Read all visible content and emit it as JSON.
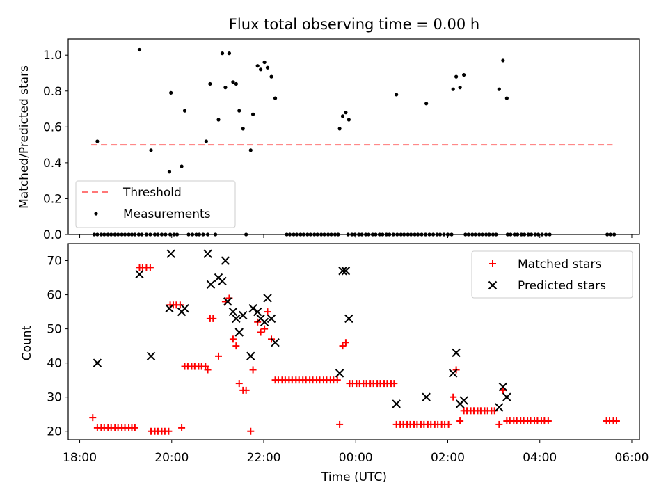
{
  "figure": {
    "title": "Flux total observing time = 0.00 h"
  },
  "chart_data": [
    {
      "type": "scatter",
      "title": "Flux total observing time = 0.00 h",
      "xlabel": "",
      "ylabel": "Matched/Predicted stars",
      "xlim": [
        "17:45",
        "06:10"
      ],
      "ylim": [
        0,
        1.09
      ],
      "yticks": [
        "0.0",
        "0.2",
        "0.4",
        "0.6",
        "0.8",
        "1.0"
      ],
      "grid": false,
      "legend_position": "lower-left",
      "legend": [
        "Threshold",
        "Measurements"
      ],
      "threshold": {
        "name": "Threshold",
        "value": 0.5,
        "x_start": "18:15",
        "x_end": "05:35",
        "color": "#ff7777",
        "style": "dashed"
      },
      "measurements": {
        "name": "Measurements",
        "color": "#000000",
        "points": [
          [
            "18:23",
            0.52
          ],
          [
            "19:18",
            1.03
          ],
          [
            "19:33",
            0.47
          ],
          [
            "19:57",
            0.35
          ],
          [
            "19:59",
            0.79
          ],
          [
            "20:13",
            0.38
          ],
          [
            "20:17",
            0.69
          ],
          [
            "20:45",
            0.52
          ],
          [
            "20:50",
            0.84
          ],
          [
            "21:01",
            0.64
          ],
          [
            "21:06",
            1.01
          ],
          [
            "21:10",
            0.82
          ],
          [
            "21:15",
            1.01
          ],
          [
            "21:20",
            0.85
          ],
          [
            "21:24",
            0.84
          ],
          [
            "21:28",
            0.69
          ],
          [
            "21:33",
            0.59
          ],
          [
            "21:43",
            0.47
          ],
          [
            "21:46",
            0.67
          ],
          [
            "21:52",
            0.94
          ],
          [
            "21:56",
            0.92
          ],
          [
            "22:01",
            0.96
          ],
          [
            "22:05",
            0.93
          ],
          [
            "22:10",
            0.88
          ],
          [
            "22:15",
            0.76
          ],
          [
            "23:39",
            0.59
          ],
          [
            "23:43",
            0.66
          ],
          [
            "23:47",
            0.68
          ],
          [
            "23:51",
            0.64
          ],
          [
            "00:53",
            0.78
          ],
          [
            "01:32",
            0.73
          ],
          [
            "02:07",
            0.81
          ],
          [
            "02:11",
            0.88
          ],
          [
            "02:16",
            0.82
          ],
          [
            "02:21",
            0.89
          ],
          [
            "03:07",
            0.81
          ],
          [
            "03:12",
            0.97
          ],
          [
            "03:17",
            0.76
          ]
        ],
        "zero_points": [
          "18:19",
          "18:23",
          "18:28",
          "18:32",
          "18:37",
          "18:41",
          "18:46",
          "18:50",
          "18:55",
          "18:59",
          "19:04",
          "19:08",
          "19:12",
          "19:17",
          "19:21",
          "19:27",
          "19:32",
          "19:38",
          "19:42",
          "19:47",
          "19:52",
          "19:58",
          "20:03",
          "20:07",
          "20:22",
          "20:27",
          "20:32",
          "20:36",
          "20:41",
          "20:47",
          "20:57",
          "21:37",
          "22:30",
          "22:34",
          "22:39",
          "22:43",
          "22:48",
          "22:52",
          "22:57",
          "23:01",
          "23:06",
          "23:10",
          "23:15",
          "23:19",
          "23:24",
          "23:28",
          "23:33",
          "23:37",
          "23:50",
          "23:55",
          "23:59",
          "00:04",
          "00:08",
          "00:13",
          "00:17",
          "00:22",
          "00:26",
          "00:31",
          "00:35",
          "00:40",
          "00:44",
          "00:49",
          "00:54",
          "00:59",
          "01:03",
          "01:08",
          "01:12",
          "01:17",
          "01:21",
          "01:26",
          "01:31",
          "01:36",
          "01:41",
          "01:46",
          "01:50",
          "01:55",
          "02:00",
          "02:05",
          "02:23",
          "02:27",
          "02:32",
          "02:36",
          "02:41",
          "02:45",
          "02:50",
          "02:54",
          "02:59",
          "03:03",
          "03:18",
          "03:22",
          "03:27",
          "03:31",
          "03:36",
          "03:40",
          "03:45",
          "03:49",
          "03:54",
          "03:58",
          "04:03",
          "04:08",
          "04:13",
          "05:28",
          "05:32",
          "05:37"
        ]
      }
    },
    {
      "type": "scatter",
      "xlabel": "Time (UTC)",
      "ylabel": "Count",
      "xlim": [
        "17:45",
        "06:10"
      ],
      "ylim": [
        17.5,
        75
      ],
      "xticks": [
        "18:00",
        "20:00",
        "22:00",
        "00:00",
        "02:00",
        "04:00",
        "06:00"
      ],
      "yticks": [
        "20",
        "30",
        "40",
        "50",
        "60",
        "70"
      ],
      "grid": false,
      "legend_position": "upper-right",
      "legend": [
        "Matched stars",
        "Predicted stars"
      ],
      "series": [
        {
          "name": "Matched stars",
          "marker": "plus",
          "color": "#ff0000",
          "points": [
            [
              "18:17",
              24
            ],
            [
              "18:23",
              21
            ],
            [
              "18:28",
              21
            ],
            [
              "18:32",
              21
            ],
            [
              "18:37",
              21
            ],
            [
              "18:41",
              21
            ],
            [
              "18:46",
              21
            ],
            [
              "18:50",
              21
            ],
            [
              "18:55",
              21
            ],
            [
              "18:59",
              21
            ],
            [
              "19:04",
              21
            ],
            [
              "19:08",
              21
            ],
            [
              "19:12",
              21
            ],
            [
              "19:18",
              68
            ],
            [
              "19:22",
              68
            ],
            [
              "19:27",
              68
            ],
            [
              "19:32",
              68
            ],
            [
              "19:33",
              20
            ],
            [
              "19:38",
              20
            ],
            [
              "19:42",
              20
            ],
            [
              "19:47",
              20
            ],
            [
              "19:51",
              20
            ],
            [
              "19:56",
              20
            ],
            [
              "19:58",
              57
            ],
            [
              "20:02",
              57
            ],
            [
              "20:06",
              57
            ],
            [
              "20:11",
              57
            ],
            [
              "20:13",
              21
            ],
            [
              "20:17",
              39
            ],
            [
              "20:21",
              39
            ],
            [
              "20:26",
              39
            ],
            [
              "20:30",
              39
            ],
            [
              "20:35",
              39
            ],
            [
              "20:39",
              39
            ],
            [
              "20:44",
              39
            ],
            [
              "20:47",
              38
            ],
            [
              "20:50",
              53
            ],
            [
              "20:54",
              53
            ],
            [
              "21:01",
              42
            ],
            [
              "21:10",
              58
            ],
            [
              "21:15",
              59
            ],
            [
              "21:20",
              47
            ],
            [
              "21:24",
              45
            ],
            [
              "21:28",
              34
            ],
            [
              "21:33",
              32
            ],
            [
              "21:37",
              32
            ],
            [
              "21:43",
              20
            ],
            [
              "21:46",
              38
            ],
            [
              "21:52",
              52
            ],
            [
              "21:56",
              49
            ],
            [
              "22:01",
              50
            ],
            [
              "22:05",
              55
            ],
            [
              "22:10",
              47
            ],
            [
              "22:15",
              35
            ],
            [
              "22:19",
              35
            ],
            [
              "22:24",
              35
            ],
            [
              "22:28",
              35
            ],
            [
              "22:33",
              35
            ],
            [
              "22:37",
              35
            ],
            [
              "22:42",
              35
            ],
            [
              "22:46",
              35
            ],
            [
              "22:51",
              35
            ],
            [
              "22:55",
              35
            ],
            [
              "23:00",
              35
            ],
            [
              "23:04",
              35
            ],
            [
              "23:09",
              35
            ],
            [
              "23:13",
              35
            ],
            [
              "23:18",
              35
            ],
            [
              "23:22",
              35
            ],
            [
              "23:27",
              35
            ],
            [
              "23:31",
              35
            ],
            [
              "23:36",
              35
            ],
            [
              "23:39",
              22
            ],
            [
              "23:43",
              45
            ],
            [
              "23:47",
              46
            ],
            [
              "23:52",
              34
            ],
            [
              "23:56",
              34
            ],
            [
              "00:01",
              34
            ],
            [
              "00:05",
              34
            ],
            [
              "00:10",
              34
            ],
            [
              "00:14",
              34
            ],
            [
              "00:19",
              34
            ],
            [
              "00:23",
              34
            ],
            [
              "00:28",
              34
            ],
            [
              "00:32",
              34
            ],
            [
              "00:37",
              34
            ],
            [
              "00:41",
              34
            ],
            [
              "00:46",
              34
            ],
            [
              "00:50",
              34
            ],
            [
              "00:53",
              22
            ],
            [
              "00:58",
              22
            ],
            [
              "01:02",
              22
            ],
            [
              "01:07",
              22
            ],
            [
              "01:11",
              22
            ],
            [
              "01:16",
              22
            ],
            [
              "01:20",
              22
            ],
            [
              "01:25",
              22
            ],
            [
              "01:29",
              22
            ],
            [
              "01:34",
              22
            ],
            [
              "01:38",
              22
            ],
            [
              "01:43",
              22
            ],
            [
              "01:47",
              22
            ],
            [
              "01:52",
              22
            ],
            [
              "01:56",
              22
            ],
            [
              "02:01",
              22
            ],
            [
              "02:07",
              30
            ],
            [
              "02:11",
              38
            ],
            [
              "02:16",
              23
            ],
            [
              "02:21",
              26
            ],
            [
              "02:25",
              26
            ],
            [
              "02:30",
              26
            ],
            [
              "02:34",
              26
            ],
            [
              "02:39",
              26
            ],
            [
              "02:43",
              26
            ],
            [
              "02:48",
              26
            ],
            [
              "02:52",
              26
            ],
            [
              "02:57",
              26
            ],
            [
              "03:01",
              26
            ],
            [
              "03:07",
              22
            ],
            [
              "03:12",
              32
            ],
            [
              "03:17",
              23
            ],
            [
              "03:21",
              23
            ],
            [
              "03:26",
              23
            ],
            [
              "03:30",
              23
            ],
            [
              "03:35",
              23
            ],
            [
              "03:39",
              23
            ],
            [
              "03:44",
              23
            ],
            [
              "03:48",
              23
            ],
            [
              "03:53",
              23
            ],
            [
              "03:57",
              23
            ],
            [
              "04:02",
              23
            ],
            [
              "04:06",
              23
            ],
            [
              "04:11",
              23
            ],
            [
              "05:27",
              23
            ],
            [
              "05:31",
              23
            ],
            [
              "05:36",
              23
            ],
            [
              "05:40",
              23
            ]
          ]
        },
        {
          "name": "Predicted stars",
          "marker": "x",
          "color": "#000000",
          "points": [
            [
              "18:23",
              40
            ],
            [
              "19:18",
              66
            ],
            [
              "19:33",
              42
            ],
            [
              "19:57",
              56
            ],
            [
              "19:59",
              72
            ],
            [
              "20:13",
              55
            ],
            [
              "20:17",
              56
            ],
            [
              "20:47",
              72
            ],
            [
              "20:51",
              63
            ],
            [
              "21:01",
              65
            ],
            [
              "21:06",
              64
            ],
            [
              "21:10",
              70
            ],
            [
              "21:13",
              58
            ],
            [
              "21:20",
              55
            ],
            [
              "21:24",
              53
            ],
            [
              "21:28",
              49
            ],
            [
              "21:33",
              54
            ],
            [
              "21:43",
              42
            ],
            [
              "21:46",
              56
            ],
            [
              "21:52",
              55
            ],
            [
              "21:56",
              53
            ],
            [
              "22:01",
              52
            ],
            [
              "22:05",
              59
            ],
            [
              "22:10",
              53
            ],
            [
              "22:15",
              46
            ],
            [
              "23:39",
              37
            ],
            [
              "23:43",
              67
            ],
            [
              "23:47",
              67
            ],
            [
              "23:51",
              53
            ],
            [
              "00:53",
              28
            ],
            [
              "01:32",
              30
            ],
            [
              "02:07",
              37
            ],
            [
              "02:11",
              43
            ],
            [
              "02:16",
              28
            ],
            [
              "02:21",
              29
            ],
            [
              "03:07",
              27
            ],
            [
              "03:12",
              33
            ],
            [
              "03:17",
              30
            ]
          ]
        }
      ]
    }
  ]
}
